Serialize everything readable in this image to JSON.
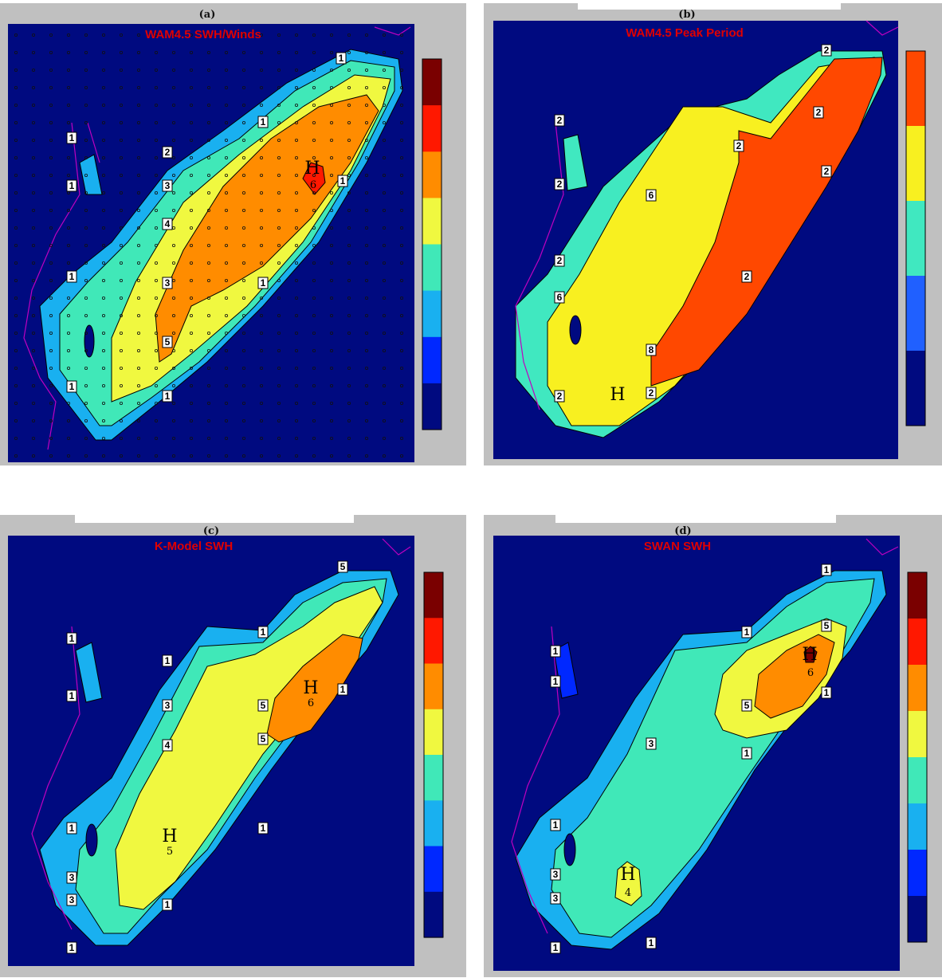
{
  "palette": {
    "ocean": "#000a80",
    "grey": "#c0c0c0",
    "coast": "#c000c0",
    "title": "#e00000",
    "colorbar": [
      "#000a80",
      "#0028ff",
      "#19b0f0",
      "#40e8b8",
      "#f0f840",
      "#ff8c00",
      "#ff1800",
      "#7a0000"
    ],
    "colorbar_b": [
      "#000a80",
      "#2060ff",
      "#40e8c0",
      "#f8f020",
      "#ff4800"
    ]
  },
  "panels": [
    {
      "id": "a",
      "label": "(a)",
      "title": "WAM4.5 SWH/Winds",
      "fill_colors": [
        "#19b0f0",
        "#40e8b8",
        "#f0f840",
        "#ff8c00",
        "#ff1800"
      ],
      "contour_labels": [
        "1",
        "1",
        "1",
        "1",
        "1",
        "1",
        "1",
        "1",
        "1",
        "1",
        "2",
        "3",
        "4",
        "3",
        "5",
        "5",
        "1"
      ],
      "max_label": "H",
      "max_value": "6",
      "colorbar_key": "colorbar"
    },
    {
      "id": "b",
      "label": "(b)",
      "title": "WAM4.5 Peak Period",
      "fill_colors": [
        "#40e8c0",
        "#f8f020",
        "#ff4800"
      ],
      "contour_labels": [
        "2",
        "2",
        "2",
        "2",
        "2",
        "2",
        "2",
        "6",
        "2",
        "6",
        "8",
        "2",
        "2",
        "2"
      ],
      "max_label": "H",
      "max_value": "",
      "colorbar_key": "colorbar_b"
    },
    {
      "id": "c",
      "label": "(c)",
      "title": "K-Model SWH",
      "fill_colors": [
        "#19b0f0",
        "#40e8b8",
        "#f0f840",
        "#ff8c00"
      ],
      "contour_labels": [
        "1",
        "1",
        "1",
        "1",
        "1",
        "3",
        "4",
        "1",
        "3",
        "3",
        "1",
        "1",
        "5",
        "5",
        "5",
        "1"
      ],
      "max_label": "H",
      "max_value": "6",
      "second_max_label": "H",
      "second_max_value": "5",
      "colorbar_key": "colorbar"
    },
    {
      "id": "d",
      "label": "(d)",
      "title": "SWAN SWH",
      "fill_colors": [
        "#19b0f0",
        "#40e8b8",
        "#f0f840",
        "#ff8c00",
        "#7a0000"
      ],
      "contour_labels": [
        "1",
        "1",
        "1",
        "1",
        "1",
        "3",
        "1",
        "3",
        "3",
        "1",
        "1",
        "5",
        "5",
        "1",
        "1"
      ],
      "max_label": "H",
      "max_value": "6",
      "second_max_label": "H",
      "second_max_value": "4",
      "colorbar_key": "colorbar"
    }
  ]
}
